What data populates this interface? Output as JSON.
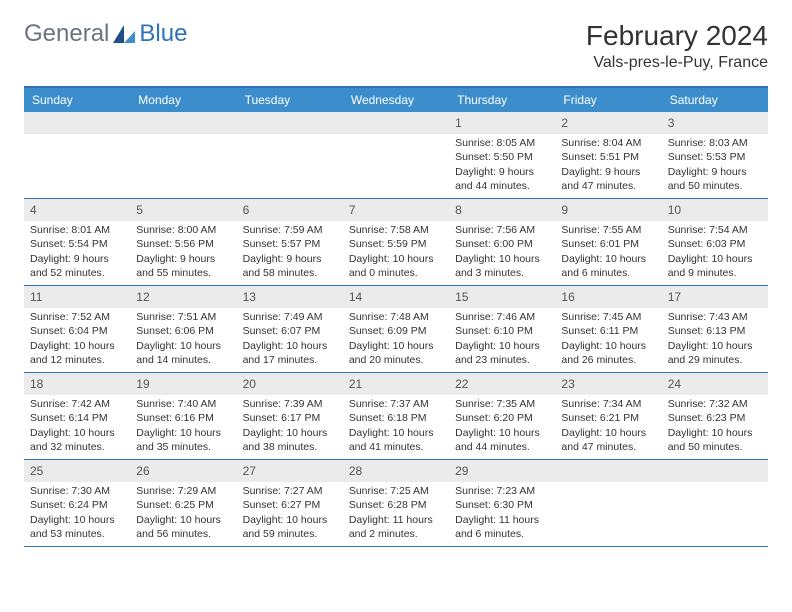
{
  "logo": {
    "general": "General",
    "blue": "Blue"
  },
  "header": {
    "month_title": "February 2024",
    "location": "Vals-pres-le-Puy, France"
  },
  "colors": {
    "accent": "#2f72b8",
    "header_bg": "#3c8dcc",
    "daynum_bg": "#ebebeb",
    "text": "#333333"
  },
  "weekdays": [
    "Sunday",
    "Monday",
    "Tuesday",
    "Wednesday",
    "Thursday",
    "Friday",
    "Saturday"
  ],
  "weeks": [
    [
      {
        "n": "",
        "sunrise": "",
        "sunset": "",
        "daylight": ""
      },
      {
        "n": "",
        "sunrise": "",
        "sunset": "",
        "daylight": ""
      },
      {
        "n": "",
        "sunrise": "",
        "sunset": "",
        "daylight": ""
      },
      {
        "n": "",
        "sunrise": "",
        "sunset": "",
        "daylight": ""
      },
      {
        "n": "1",
        "sunrise": "Sunrise: 8:05 AM",
        "sunset": "Sunset: 5:50 PM",
        "daylight": "Daylight: 9 hours and 44 minutes."
      },
      {
        "n": "2",
        "sunrise": "Sunrise: 8:04 AM",
        "sunset": "Sunset: 5:51 PM",
        "daylight": "Daylight: 9 hours and 47 minutes."
      },
      {
        "n": "3",
        "sunrise": "Sunrise: 8:03 AM",
        "sunset": "Sunset: 5:53 PM",
        "daylight": "Daylight: 9 hours and 50 minutes."
      }
    ],
    [
      {
        "n": "4",
        "sunrise": "Sunrise: 8:01 AM",
        "sunset": "Sunset: 5:54 PM",
        "daylight": "Daylight: 9 hours and 52 minutes."
      },
      {
        "n": "5",
        "sunrise": "Sunrise: 8:00 AM",
        "sunset": "Sunset: 5:56 PM",
        "daylight": "Daylight: 9 hours and 55 minutes."
      },
      {
        "n": "6",
        "sunrise": "Sunrise: 7:59 AM",
        "sunset": "Sunset: 5:57 PM",
        "daylight": "Daylight: 9 hours and 58 minutes."
      },
      {
        "n": "7",
        "sunrise": "Sunrise: 7:58 AM",
        "sunset": "Sunset: 5:59 PM",
        "daylight": "Daylight: 10 hours and 0 minutes."
      },
      {
        "n": "8",
        "sunrise": "Sunrise: 7:56 AM",
        "sunset": "Sunset: 6:00 PM",
        "daylight": "Daylight: 10 hours and 3 minutes."
      },
      {
        "n": "9",
        "sunrise": "Sunrise: 7:55 AM",
        "sunset": "Sunset: 6:01 PM",
        "daylight": "Daylight: 10 hours and 6 minutes."
      },
      {
        "n": "10",
        "sunrise": "Sunrise: 7:54 AM",
        "sunset": "Sunset: 6:03 PM",
        "daylight": "Daylight: 10 hours and 9 minutes."
      }
    ],
    [
      {
        "n": "11",
        "sunrise": "Sunrise: 7:52 AM",
        "sunset": "Sunset: 6:04 PM",
        "daylight": "Daylight: 10 hours and 12 minutes."
      },
      {
        "n": "12",
        "sunrise": "Sunrise: 7:51 AM",
        "sunset": "Sunset: 6:06 PM",
        "daylight": "Daylight: 10 hours and 14 minutes."
      },
      {
        "n": "13",
        "sunrise": "Sunrise: 7:49 AM",
        "sunset": "Sunset: 6:07 PM",
        "daylight": "Daylight: 10 hours and 17 minutes."
      },
      {
        "n": "14",
        "sunrise": "Sunrise: 7:48 AM",
        "sunset": "Sunset: 6:09 PM",
        "daylight": "Daylight: 10 hours and 20 minutes."
      },
      {
        "n": "15",
        "sunrise": "Sunrise: 7:46 AM",
        "sunset": "Sunset: 6:10 PM",
        "daylight": "Daylight: 10 hours and 23 minutes."
      },
      {
        "n": "16",
        "sunrise": "Sunrise: 7:45 AM",
        "sunset": "Sunset: 6:11 PM",
        "daylight": "Daylight: 10 hours and 26 minutes."
      },
      {
        "n": "17",
        "sunrise": "Sunrise: 7:43 AM",
        "sunset": "Sunset: 6:13 PM",
        "daylight": "Daylight: 10 hours and 29 minutes."
      }
    ],
    [
      {
        "n": "18",
        "sunrise": "Sunrise: 7:42 AM",
        "sunset": "Sunset: 6:14 PM",
        "daylight": "Daylight: 10 hours and 32 minutes."
      },
      {
        "n": "19",
        "sunrise": "Sunrise: 7:40 AM",
        "sunset": "Sunset: 6:16 PM",
        "daylight": "Daylight: 10 hours and 35 minutes."
      },
      {
        "n": "20",
        "sunrise": "Sunrise: 7:39 AM",
        "sunset": "Sunset: 6:17 PM",
        "daylight": "Daylight: 10 hours and 38 minutes."
      },
      {
        "n": "21",
        "sunrise": "Sunrise: 7:37 AM",
        "sunset": "Sunset: 6:18 PM",
        "daylight": "Daylight: 10 hours and 41 minutes."
      },
      {
        "n": "22",
        "sunrise": "Sunrise: 7:35 AM",
        "sunset": "Sunset: 6:20 PM",
        "daylight": "Daylight: 10 hours and 44 minutes."
      },
      {
        "n": "23",
        "sunrise": "Sunrise: 7:34 AM",
        "sunset": "Sunset: 6:21 PM",
        "daylight": "Daylight: 10 hours and 47 minutes."
      },
      {
        "n": "24",
        "sunrise": "Sunrise: 7:32 AM",
        "sunset": "Sunset: 6:23 PM",
        "daylight": "Daylight: 10 hours and 50 minutes."
      }
    ],
    [
      {
        "n": "25",
        "sunrise": "Sunrise: 7:30 AM",
        "sunset": "Sunset: 6:24 PM",
        "daylight": "Daylight: 10 hours and 53 minutes."
      },
      {
        "n": "26",
        "sunrise": "Sunrise: 7:29 AM",
        "sunset": "Sunset: 6:25 PM",
        "daylight": "Daylight: 10 hours and 56 minutes."
      },
      {
        "n": "27",
        "sunrise": "Sunrise: 7:27 AM",
        "sunset": "Sunset: 6:27 PM",
        "daylight": "Daylight: 10 hours and 59 minutes."
      },
      {
        "n": "28",
        "sunrise": "Sunrise: 7:25 AM",
        "sunset": "Sunset: 6:28 PM",
        "daylight": "Daylight: 11 hours and 2 minutes."
      },
      {
        "n": "29",
        "sunrise": "Sunrise: 7:23 AM",
        "sunset": "Sunset: 6:30 PM",
        "daylight": "Daylight: 11 hours and 6 minutes."
      },
      {
        "n": "",
        "sunrise": "",
        "sunset": "",
        "daylight": ""
      },
      {
        "n": "",
        "sunrise": "",
        "sunset": "",
        "daylight": ""
      }
    ]
  ]
}
